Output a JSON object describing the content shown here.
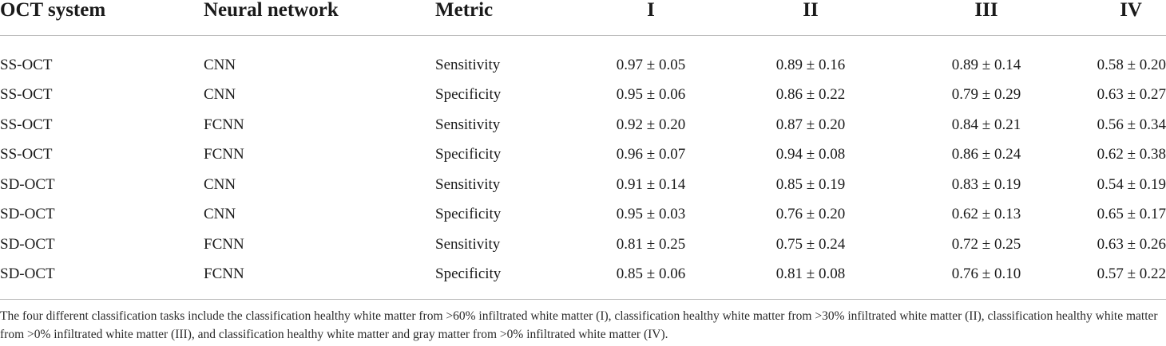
{
  "table": {
    "headers": [
      "OCT system",
      "Neural network",
      "Metric",
      "I",
      "II",
      "III",
      "IV"
    ],
    "rows": [
      [
        "SS-OCT",
        "CNN",
        "Sensitivity",
        "0.97 ± 0.05",
        "0.89 ± 0.16",
        "0.89 ± 0.14",
        "0.58 ± 0.20"
      ],
      [
        "SS-OCT",
        "CNN",
        "Specificity",
        "0.95 ± 0.06",
        "0.86 ± 0.22",
        "0.79 ± 0.29",
        "0.63 ± 0.27"
      ],
      [
        "SS-OCT",
        "FCNN",
        "Sensitivity",
        "0.92 ± 0.20",
        "0.87 ± 0.20",
        "0.84 ± 0.21",
        "0.56 ± 0.34"
      ],
      [
        "SS-OCT",
        "FCNN",
        "Specificity",
        "0.96 ± 0.07",
        "0.94 ± 0.08",
        "0.86 ± 0.24",
        "0.62 ± 0.38"
      ],
      [
        "SD-OCT",
        "CNN",
        "Sensitivity",
        "0.91 ± 0.14",
        "0.85 ± 0.19",
        "0.83 ± 0.19",
        "0.54 ± 0.19"
      ],
      [
        "SD-OCT",
        "CNN",
        "Specificity",
        "0.95 ± 0.03",
        "0.76 ± 0.20",
        "0.62 ± 0.13",
        "0.65 ± 0.17"
      ],
      [
        "SD-OCT",
        "FCNN",
        "Sensitivity",
        "0.81 ± 0.25",
        "0.75 ± 0.24",
        "0.72 ± 0.25",
        "0.63 ± 0.26"
      ],
      [
        "SD-OCT",
        "FCNN",
        "Specificity",
        "0.85 ± 0.06",
        "0.81 ± 0.08",
        "0.76 ± 0.10",
        "0.57 ± 0.22"
      ]
    ]
  },
  "footnote": "The four different classification tasks include the classification healthy white matter from >60% infiltrated white matter (I), classification healthy white matter from >30% infiltrated white matter (II), classification healthy white matter from >0% infiltrated white matter (III), and classification healthy white matter and gray matter from >0% infiltrated white matter (IV)."
}
